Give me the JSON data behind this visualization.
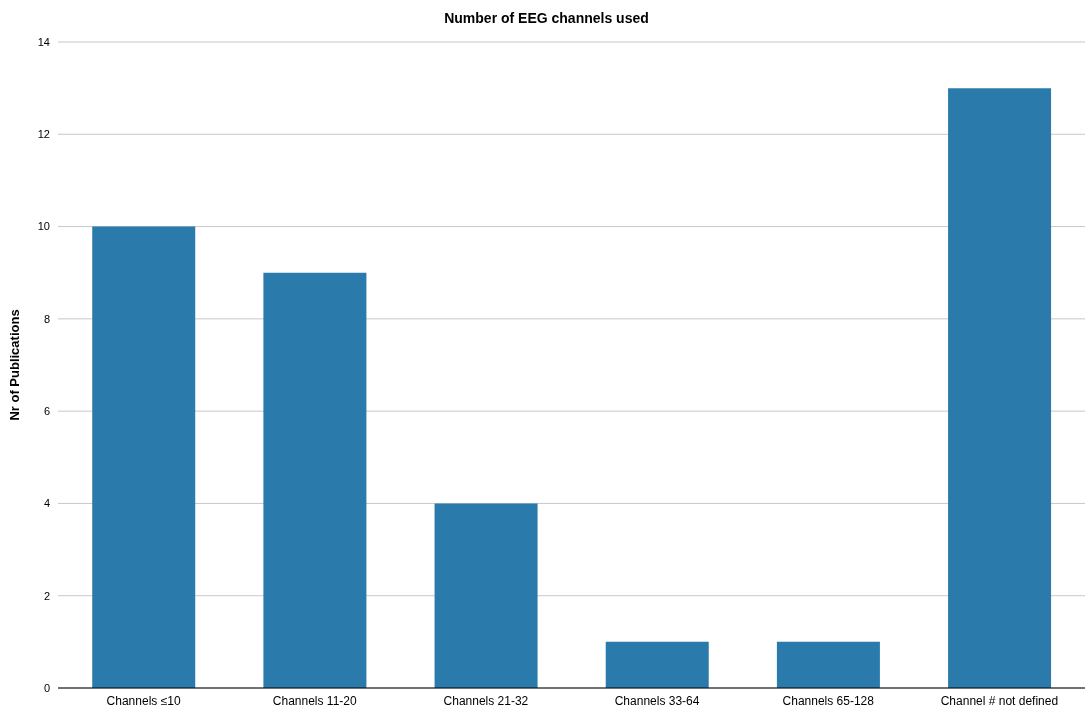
{
  "chart_data": {
    "type": "bar",
    "title": "Number of EEG channels used",
    "ylabel": "Nr of Publications",
    "categories": [
      "Channels ≤10",
      "Channels 11-20",
      "Channels 21-32",
      "Channels 33-64",
      "Channels 65-128",
      "Channel # not defined"
    ],
    "values": [
      10,
      9,
      4,
      1,
      1,
      13
    ],
    "color": "#2a7aab",
    "ylim": [
      0,
      14
    ],
    "yticks": [
      0,
      2,
      4,
      6,
      8,
      10,
      12,
      14
    ],
    "grid": "y",
    "legend": false
  }
}
